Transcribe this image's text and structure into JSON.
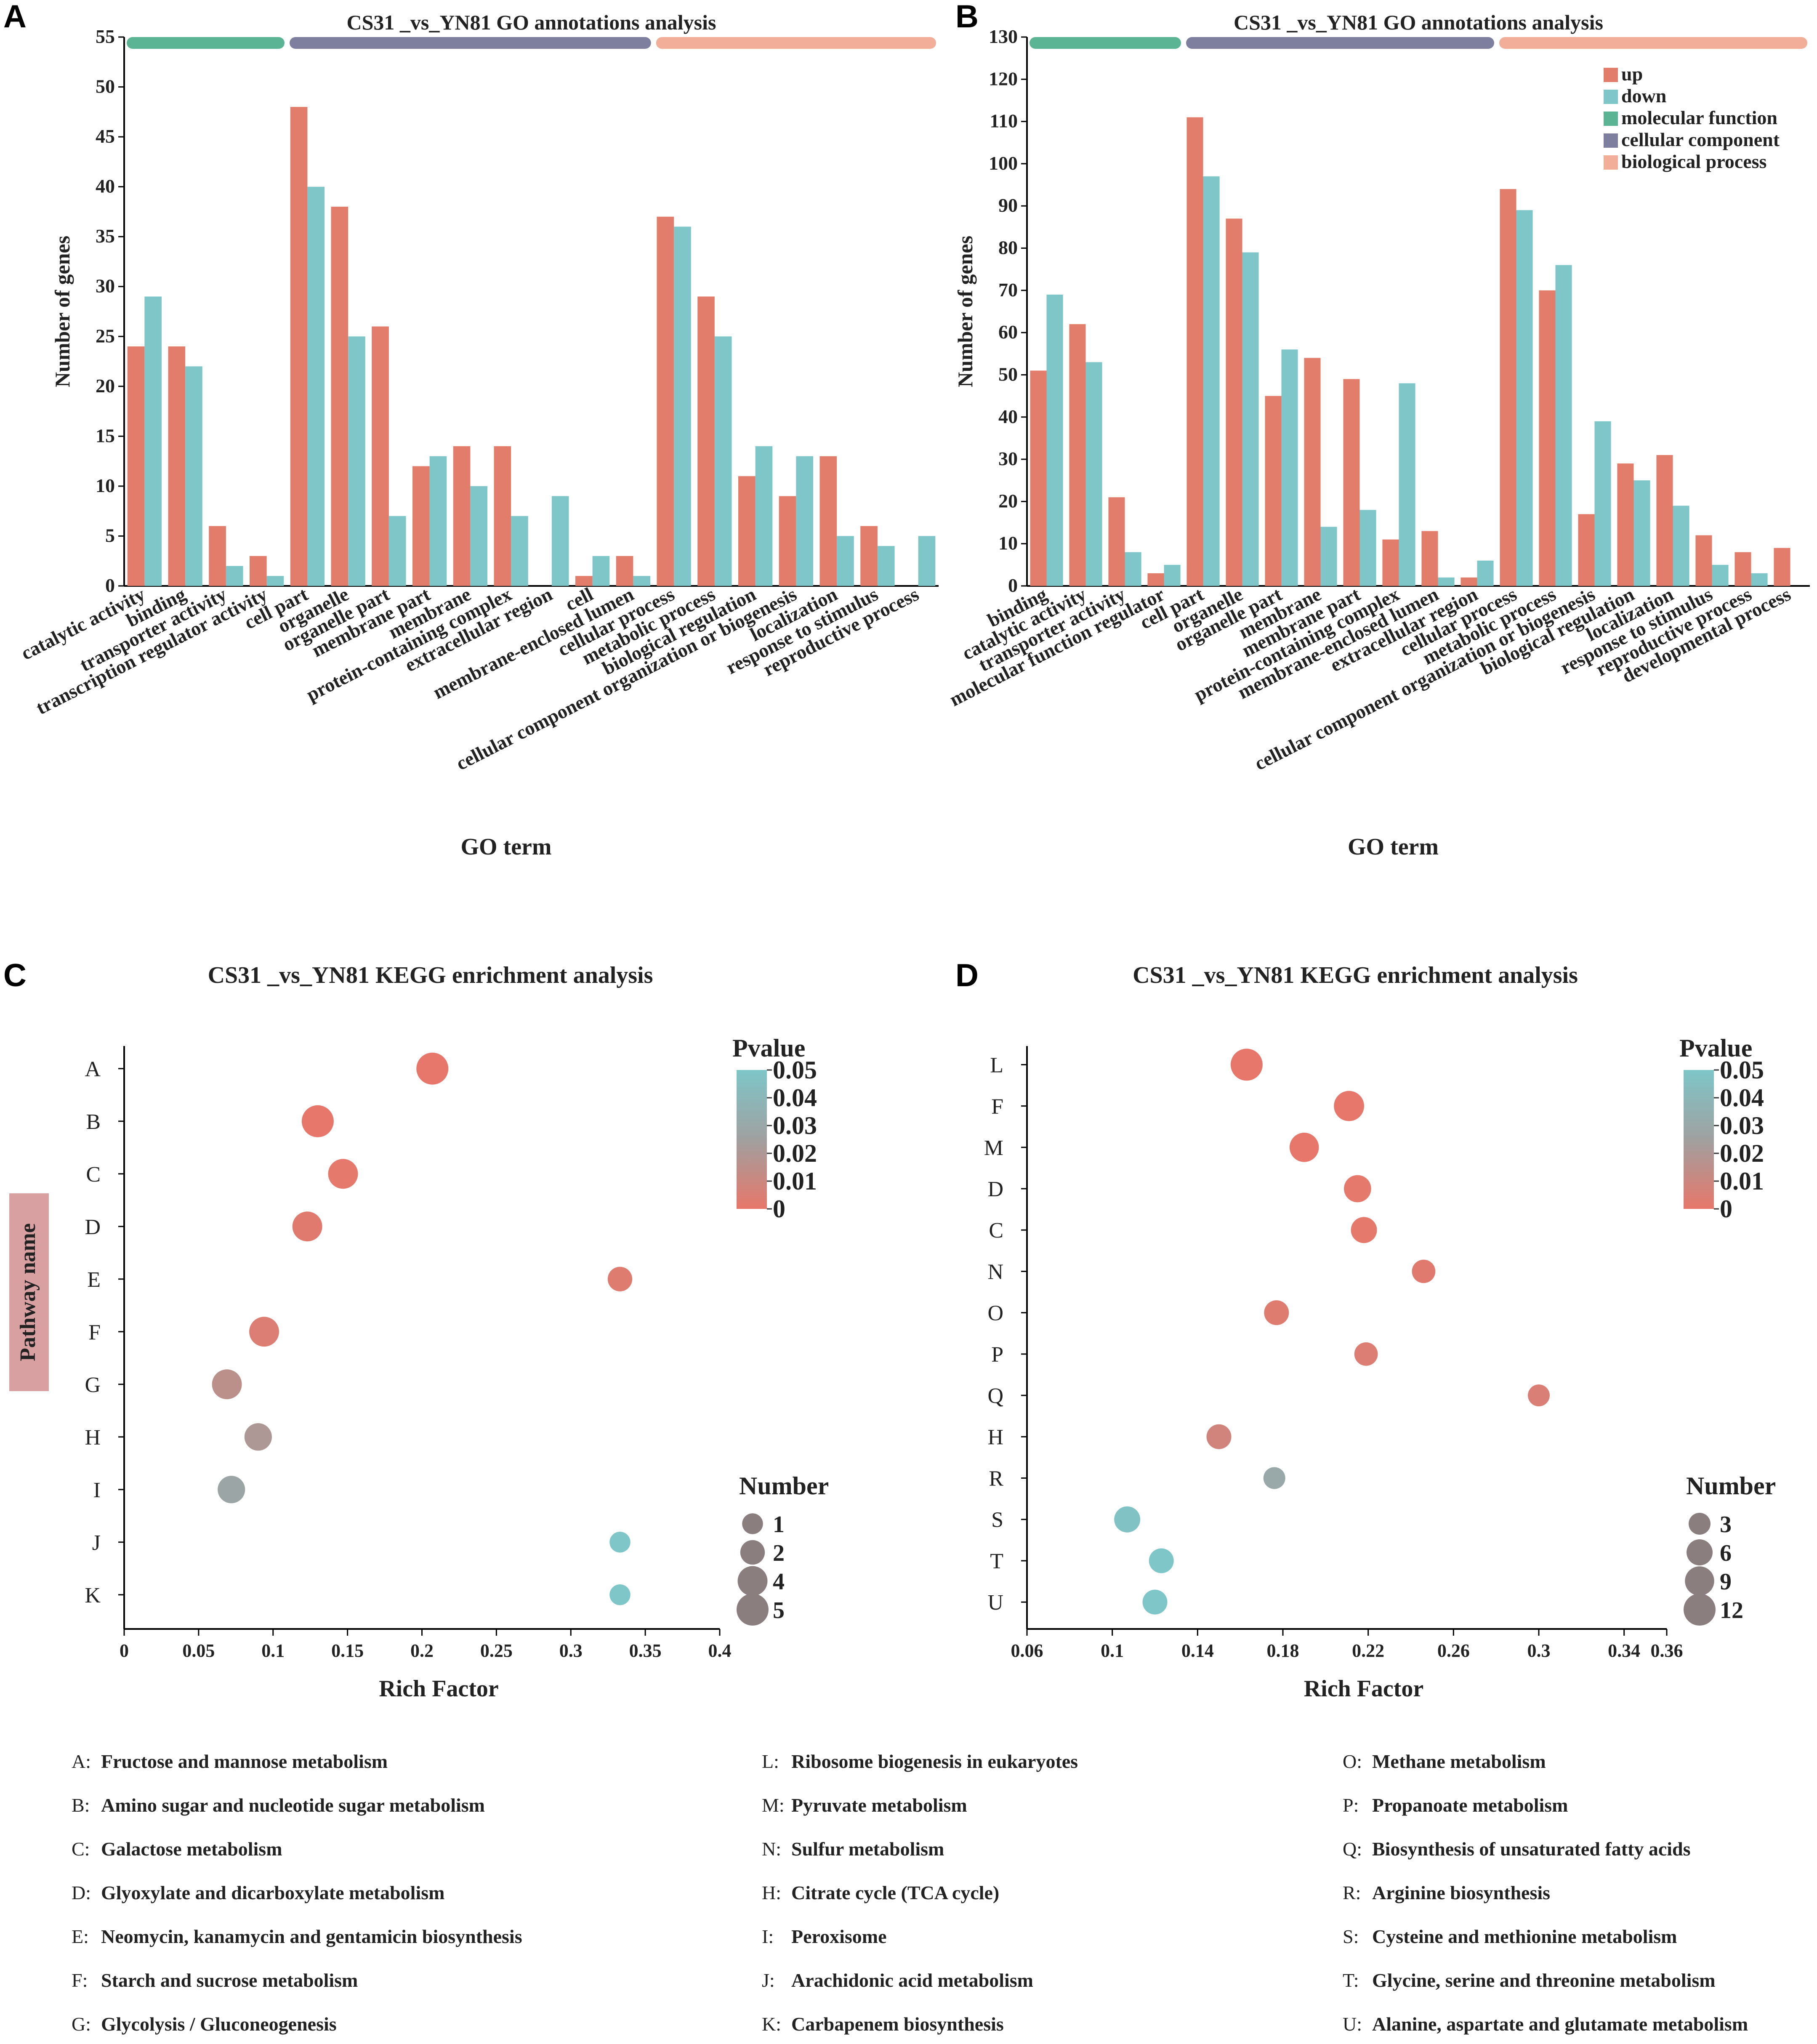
{
  "colors": {
    "up": "#E27C6B",
    "down": "#7EC6C8",
    "molecular_function": "#5BB594",
    "cellular_component": "#7E7F9E",
    "biological_process": "#F2AE98",
    "pvalue_low": "#E7776A",
    "pvalue_high": "#7EC6C8",
    "axis": "#000000",
    "pathway_box": "#D9A0A2",
    "number_dot": "#8B7E7E"
  },
  "chart_data": [
    {
      "panel": "A",
      "type": "bar",
      "title": "CS31 _vs_YN81 GO annotations analysis",
      "xlabel": "GO term",
      "ylabel": "Number of genes",
      "ylim": [
        0,
        55
      ],
      "yticks": [
        0,
        5,
        10,
        15,
        20,
        25,
        30,
        35,
        40,
        45,
        50,
        55
      ],
      "categories": [
        "catalytic activity",
        "binding",
        "transporter activity",
        "transcription regulator activity",
        "cell part",
        "organelle",
        "organelle part",
        "membrane part",
        "membrane",
        "protein-containing complex",
        "extracellular region",
        "cell",
        "membrane-enclosed lumen",
        "cellular process",
        "metabolic process",
        "biological regulation",
        "cellular component organization or biogenesis",
        "localization",
        "response to stimulus",
        "reproductive process"
      ],
      "series": [
        {
          "name": "up",
          "values": [
            24,
            24,
            6,
            3,
            48,
            38,
            26,
            12,
            14,
            14,
            0,
            1,
            3,
            37,
            29,
            11,
            9,
            13,
            6,
            0
          ]
        },
        {
          "name": "down",
          "values": [
            29,
            22,
            2,
            1,
            40,
            25,
            7,
            13,
            10,
            7,
            9,
            3,
            1,
            36,
            25,
            14,
            13,
            5,
            4,
            5
          ]
        }
      ],
      "groups": [
        {
          "name": "molecular function",
          "start": 0,
          "end": 3
        },
        {
          "name": "cellular component",
          "start": 4,
          "end": 12
        },
        {
          "name": "biological process",
          "start": 13,
          "end": 19
        }
      ]
    },
    {
      "panel": "B",
      "type": "bar",
      "title": "CS31 _vs_YN81 GO annotations analysis",
      "xlabel": "GO term",
      "ylabel": "Number of genes",
      "ylim": [
        0,
        130
      ],
      "yticks": [
        0,
        10,
        20,
        30,
        40,
        50,
        60,
        70,
        80,
        90,
        100,
        110,
        120,
        130
      ],
      "categories": [
        "binding",
        "catalytic activity",
        "transporter activity",
        "molecular function regulator",
        "cell part",
        "organelle",
        "organelle part",
        "membrane",
        "membrane part",
        "protein-containing complex",
        "membrane-enclosed lumen",
        "extracellular region",
        "cellular process",
        "metabolic process",
        "cellular component organization or biogenesis",
        "biological regulation",
        "localization",
        "response to stimulus",
        "reproductive process",
        "developmental process"
      ],
      "series": [
        {
          "name": "up",
          "values": [
            51,
            62,
            21,
            3,
            111,
            87,
            45,
            54,
            49,
            11,
            13,
            2,
            94,
            70,
            17,
            29,
            31,
            12,
            8,
            9
          ]
        },
        {
          "name": "down",
          "values": [
            69,
            53,
            8,
            5,
            97,
            79,
            56,
            14,
            18,
            48,
            2,
            6,
            89,
            76,
            39,
            25,
            19,
            5,
            3,
            0
          ]
        }
      ],
      "groups": [
        {
          "name": "molecular function",
          "start": 0,
          "end": 3
        },
        {
          "name": "cellular component",
          "start": 4,
          "end": 11
        },
        {
          "name": "biological process",
          "start": 12,
          "end": 19
        }
      ],
      "legend": [
        "up",
        "down",
        "molecular function",
        "cellular component",
        "biological process"
      ]
    },
    {
      "panel": "C",
      "type": "scatter",
      "title": "CS31 _vs_YN81 KEGG enrichment analysis",
      "xlabel": "Rich Factor",
      "ylabel": "Pathway name",
      "xlim": [
        0,
        0.4
      ],
      "xticks": [
        0,
        0.05,
        0.1,
        0.15,
        0.2,
        0.25,
        0.3,
        0.35,
        0.4
      ],
      "categories": [
        "A",
        "B",
        "C",
        "D",
        "E",
        "F",
        "G",
        "H",
        "I",
        "J",
        "K"
      ],
      "points": [
        {
          "pathway": "A",
          "x": 0.207,
          "pvalue": 0.0,
          "number": 5
        },
        {
          "pathway": "B",
          "x": 0.13,
          "pvalue": 0.0,
          "number": 5
        },
        {
          "pathway": "C",
          "x": 0.147,
          "pvalue": 0.001,
          "number": 4
        },
        {
          "pathway": "D",
          "x": 0.123,
          "pvalue": 0.002,
          "number": 4
        },
        {
          "pathway": "E",
          "x": 0.333,
          "pvalue": 0.003,
          "number": 2
        },
        {
          "pathway": "F",
          "x": 0.094,
          "pvalue": 0.004,
          "number": 4
        },
        {
          "pathway": "G",
          "x": 0.069,
          "pvalue": 0.015,
          "number": 4
        },
        {
          "pathway": "H",
          "x": 0.09,
          "pvalue": 0.02,
          "number": 3
        },
        {
          "pathway": "I",
          "x": 0.072,
          "pvalue": 0.028,
          "number": 3
        },
        {
          "pathway": "J",
          "x": 0.333,
          "pvalue": 0.05,
          "number": 1
        },
        {
          "pathway": "K",
          "x": 0.333,
          "pvalue": 0.05,
          "number": 1
        }
      ],
      "pvalue_legend": {
        "title": "Pvalue",
        "ticks": [
          "0.05",
          "0.04",
          "0.03",
          "0.02",
          "0.01",
          "0"
        ]
      },
      "size_legend": {
        "title": "Number",
        "values": [
          1,
          2,
          4,
          5
        ],
        "labels": [
          "1",
          "2",
          "4",
          "5"
        ]
      }
    },
    {
      "panel": "D",
      "type": "scatter",
      "title": "CS31 _vs_YN81 KEGG enrichment analysis",
      "xlabel": "Rich Factor",
      "ylabel": "",
      "xlim": [
        0.06,
        0.36
      ],
      "xticks": [
        0.06,
        0.1,
        0.14,
        0.18,
        0.22,
        0.26,
        0.3,
        0.34,
        0.36
      ],
      "xtick_labels": [
        "0.06",
        "0.1",
        "0.14",
        "0.18",
        "0.22",
        "0.26",
        "0.3",
        "0.34",
        "0.36"
      ],
      "categories": [
        "L",
        "F",
        "M",
        "D",
        "C",
        "N",
        "O",
        "P",
        "Q",
        "H",
        "R",
        "S",
        "T",
        "U"
      ],
      "points": [
        {
          "pathway": "L",
          "x": 0.163,
          "pvalue": 0.0,
          "number": 12
        },
        {
          "pathway": "F",
          "x": 0.211,
          "pvalue": 0.0,
          "number": 10
        },
        {
          "pathway": "M",
          "x": 0.19,
          "pvalue": 0.0,
          "number": 9
        },
        {
          "pathway": "D",
          "x": 0.215,
          "pvalue": 0.001,
          "number": 7
        },
        {
          "pathway": "C",
          "x": 0.218,
          "pvalue": 0.001,
          "number": 6
        },
        {
          "pathway": "N",
          "x": 0.246,
          "pvalue": 0.002,
          "number": 4
        },
        {
          "pathway": "O",
          "x": 0.177,
          "pvalue": 0.003,
          "number": 5
        },
        {
          "pathway": "P",
          "x": 0.219,
          "pvalue": 0.004,
          "number": 4
        },
        {
          "pathway": "Q",
          "x": 0.3,
          "pvalue": 0.005,
          "number": 3
        },
        {
          "pathway": "H",
          "x": 0.15,
          "pvalue": 0.008,
          "number": 5
        },
        {
          "pathway": "R",
          "x": 0.176,
          "pvalue": 0.03,
          "number": 3
        },
        {
          "pathway": "S",
          "x": 0.107,
          "pvalue": 0.048,
          "number": 6
        },
        {
          "pathway": "T",
          "x": 0.123,
          "pvalue": 0.05,
          "number": 5
        },
        {
          "pathway": "U",
          "x": 0.12,
          "pvalue": 0.05,
          "number": 5
        }
      ],
      "pvalue_legend": {
        "title": "Pvalue",
        "ticks": [
          "0.05",
          "0.04",
          "0.03",
          "0.02",
          "0.01",
          "0"
        ]
      },
      "size_legend": {
        "title": "Number",
        "values": [
          3,
          6,
          9,
          12
        ],
        "labels": [
          "3",
          "6",
          "9",
          "12"
        ]
      }
    }
  ],
  "panel_letters": {
    "a": "A",
    "b": "B",
    "c": "C",
    "d": "D"
  },
  "pathway_key": {
    "col1": [
      {
        "code": "A:",
        "name": "Fructose and mannose metabolism"
      },
      {
        "code": "B:",
        "name": "Amino sugar and nucleotide sugar metabolism"
      },
      {
        "code": "C:",
        "name": "Galactose metabolism"
      },
      {
        "code": "D:",
        "name": "Glyoxylate and dicarboxylate metabolism"
      },
      {
        "code": "E:",
        "name": "Neomycin, kanamycin and gentamicin biosynthesis"
      },
      {
        "code": "F:",
        "name": "Starch and sucrose metabolism"
      },
      {
        "code": "G:",
        "name": "Glycolysis / Gluconeogenesis"
      }
    ],
    "col2": [
      {
        "code": "L:",
        "name": "Ribosome biogenesis in eukaryotes"
      },
      {
        "code": "M:",
        "name": "Pyruvate metabolism"
      },
      {
        "code": "N:",
        "name": "Sulfur metabolism"
      },
      {
        "code": "H:",
        "name": "Citrate cycle (TCA cycle)"
      },
      {
        "code": "I:",
        "name": "Peroxisome"
      },
      {
        "code": "J:",
        "name": "Arachidonic acid metabolism"
      },
      {
        "code": "K:",
        "name": "Carbapenem biosynthesis"
      }
    ],
    "col3": [
      {
        "code": "O:",
        "name": "Methane metabolism"
      },
      {
        "code": "P:",
        "name": "Propanoate metabolism"
      },
      {
        "code": "Q:",
        "name": "Biosynthesis of unsaturated fatty acids"
      },
      {
        "code": "R:",
        "name": "Arginine biosynthesis"
      },
      {
        "code": "S:",
        "name": "Cysteine and methionine metabolism"
      },
      {
        "code": "T:",
        "name": "Glycine, serine and threonine metabolism"
      },
      {
        "code": "U:",
        "name": "Alanine, aspartate and glutamate metabolism"
      }
    ]
  }
}
